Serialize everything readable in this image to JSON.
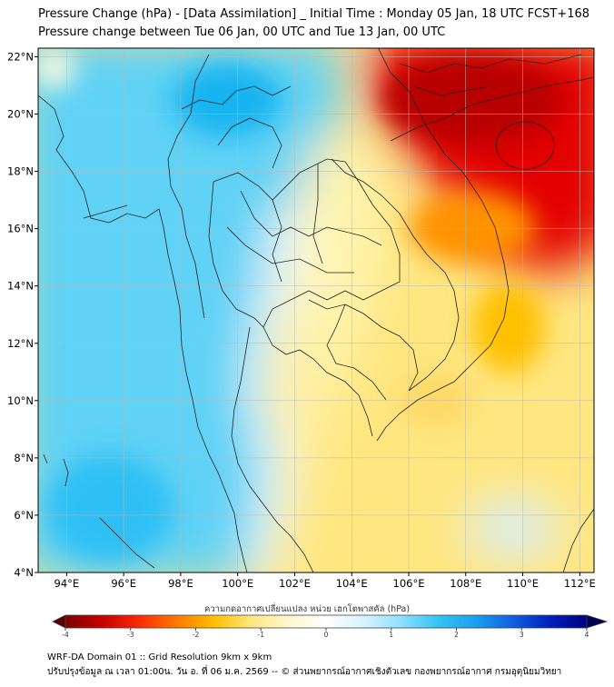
{
  "header": {
    "title_line1": "Pressure Change (hPa) - [Data Assimilation] _ Initial Time : Monday 05 Jan, 18 UTC FCST+168",
    "title_line2": "Pressure change between Tue 06 Jan, 00 UTC and Tue 13 Jan, 00 UTC"
  },
  "map": {
    "lat_ticks": [
      "22°N",
      "20°N",
      "18°N",
      "16°N",
      "14°N",
      "12°N",
      "10°N",
      "8°N",
      "6°N",
      "4°N"
    ],
    "lon_ticks": [
      "94°E",
      "96°E",
      "98°E",
      "100°E",
      "102°E",
      "104°E",
      "106°E",
      "108°E",
      "110°E",
      "112°E"
    ],
    "lat_range": [
      4,
      22.3
    ],
    "lon_range": [
      93.0,
      112.5
    ]
  },
  "colorbar": {
    "label": "ความกดอากาศเปลี่ยนแปลง หน่วย เฮกโตพาสคัล (hPa)",
    "ticks": [
      "-4",
      "-3",
      "-2",
      "-1",
      "0",
      "1",
      "2",
      "3",
      "4"
    ],
    "range": [
      -4,
      4
    ],
    "colors": [
      "#7a0000",
      "#c80000",
      "#ff2a00",
      "#ff7a00",
      "#ffc000",
      "#ffe680",
      "#fff8d0",
      "#ffffff",
      "#d8f4ff",
      "#8fe0ff",
      "#33c4f4",
      "#1aa0f0",
      "#1060e0",
      "#0020c0",
      "#000080"
    ]
  },
  "footer": {
    "line1": "WRF-DA Domain 01 :: Grid Resolution 9km x 9km",
    "line2": "ปรับปรุงข้อมูล ณ เวลา 01:00น. วัน อ. ที่ 06 ม.ค. 2569 -- © ส่วนพยากรณ์อากาศเชิงตัวเลข กองพยากรณ์อากาศ กรมอุตุนิยมวิทยา"
  }
}
